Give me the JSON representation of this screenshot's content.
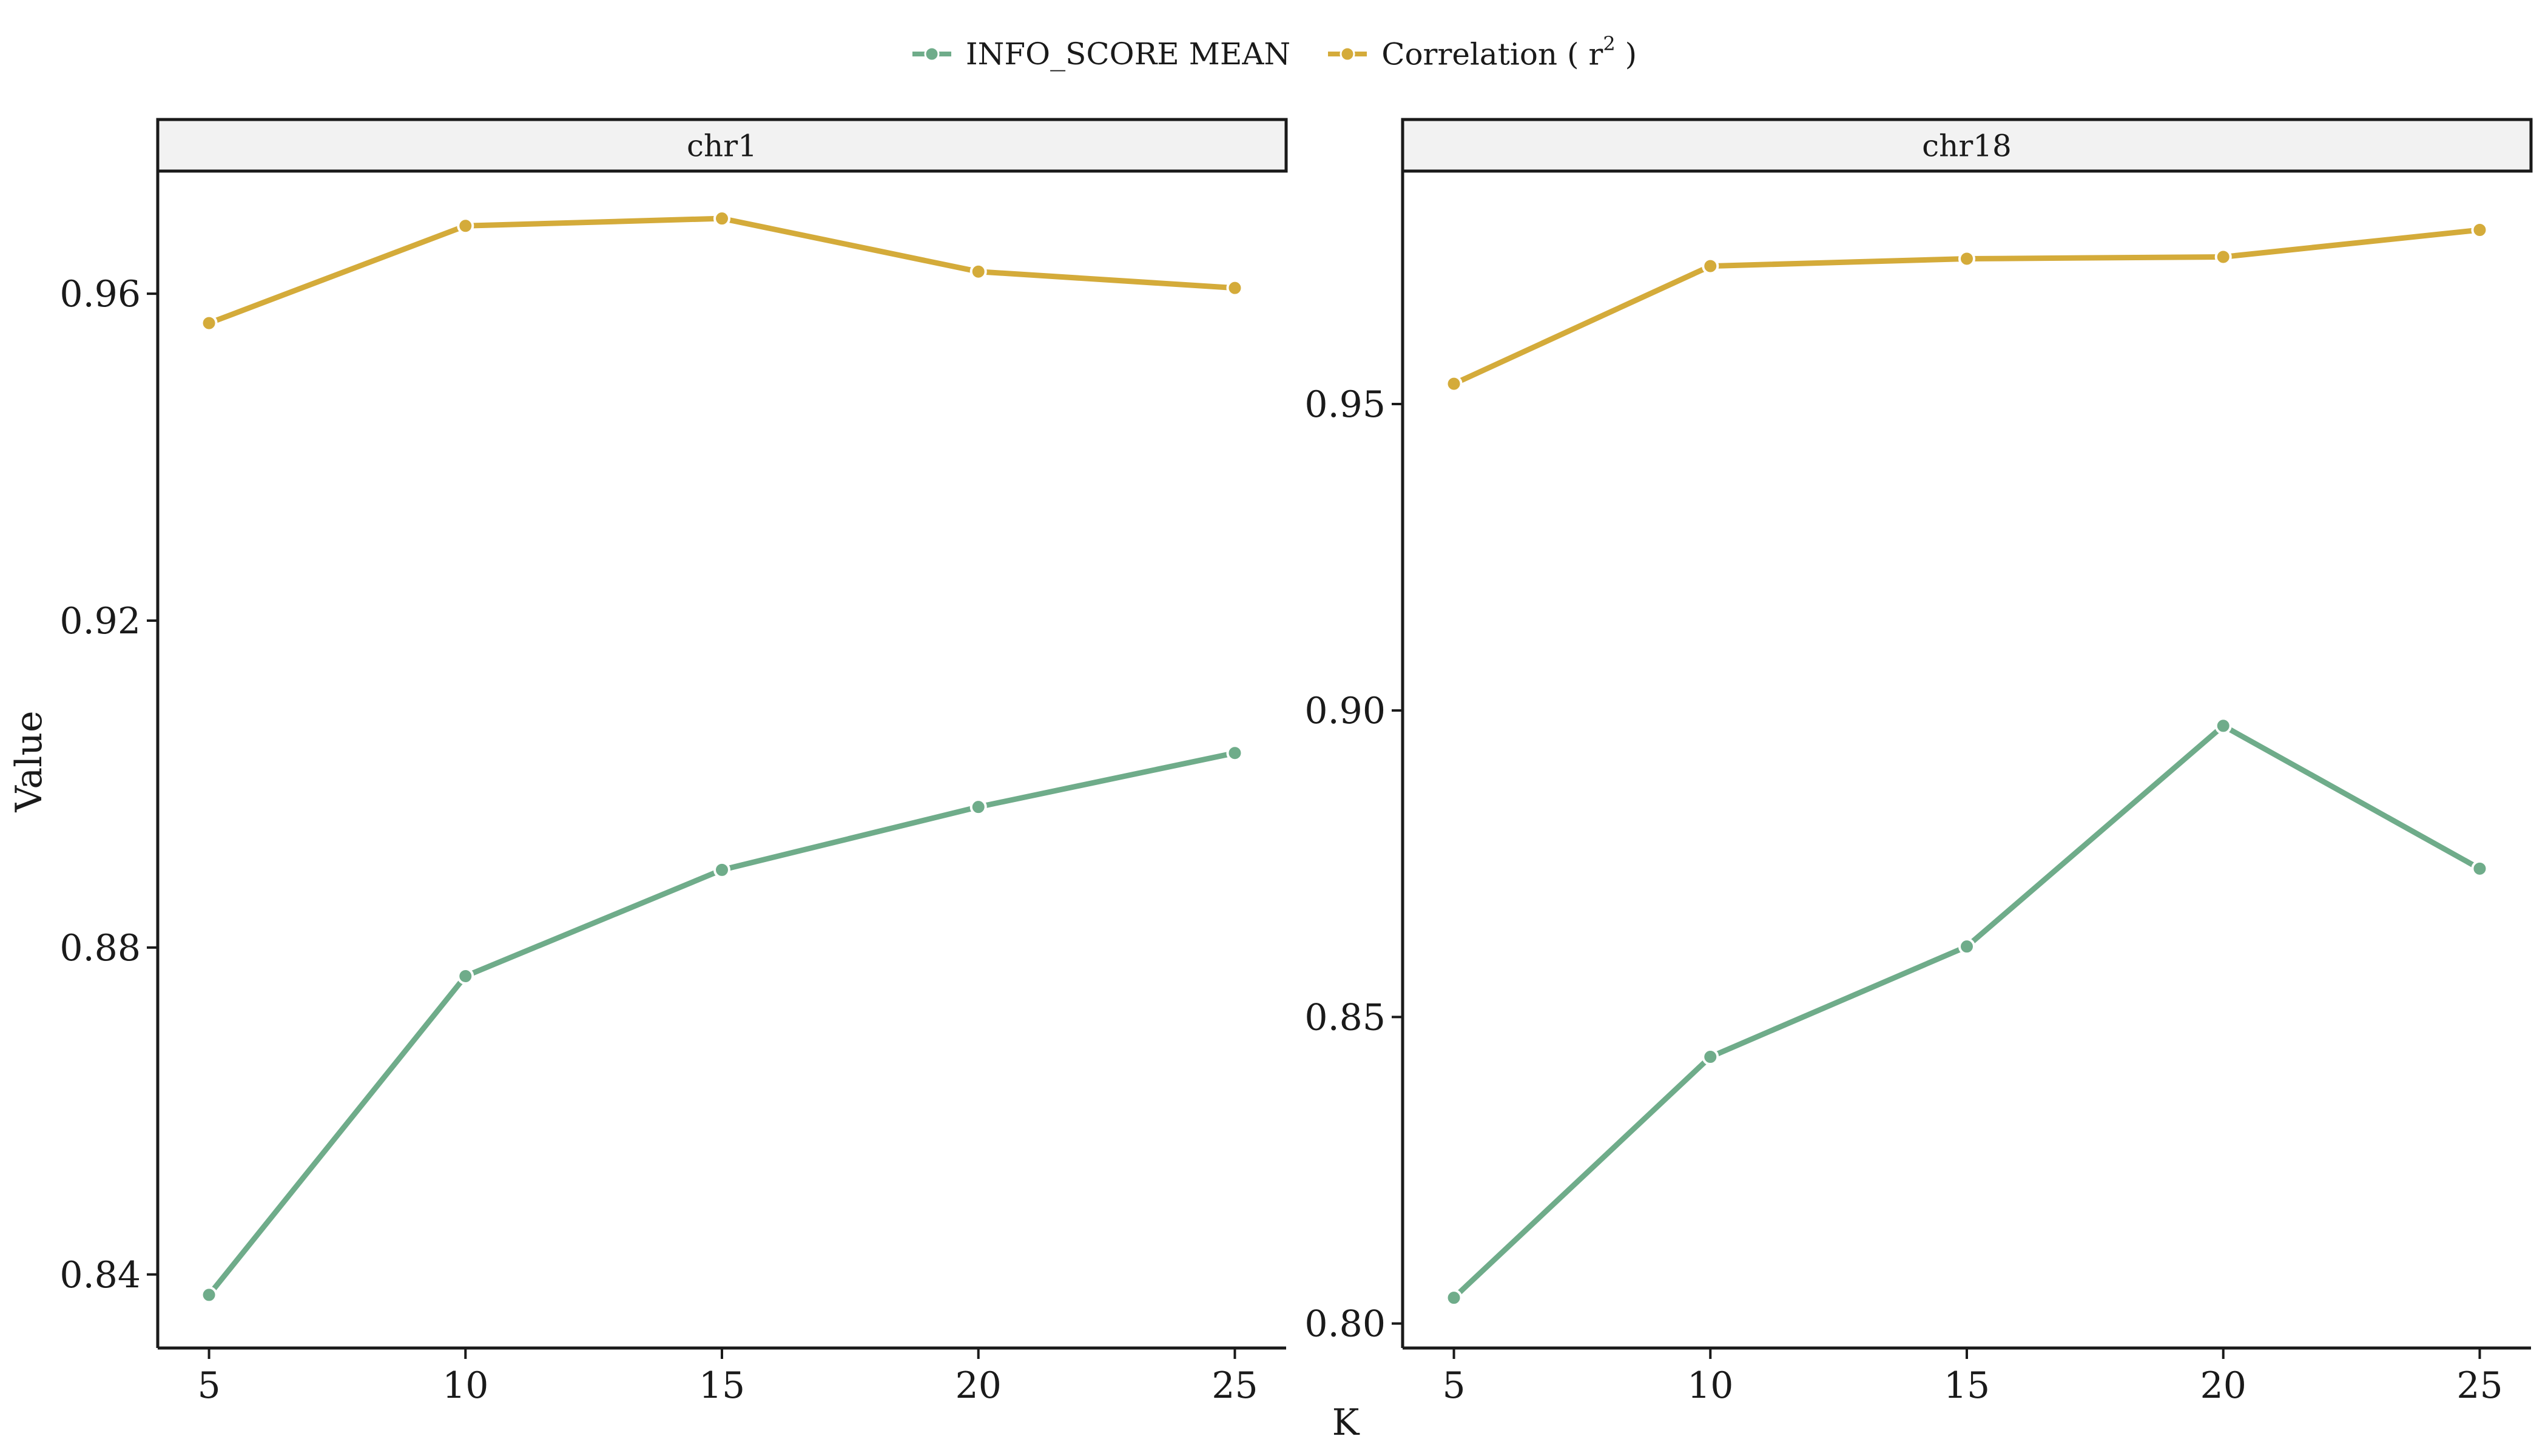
{
  "legend": {
    "items": [
      {
        "key": "info",
        "label": "INFO_SCORE MEAN",
        "color": "#6fac8a"
      },
      {
        "key": "corr",
        "label_prefix": "Correlation ( r",
        "label_sup": "2",
        "label_suffix": " )",
        "color": "#d4ab3a"
      }
    ]
  },
  "xlabel": "K",
  "ylabel": "Value",
  "chart_data": [
    {
      "type": "line",
      "panel": "chr1",
      "x": [
        5,
        10,
        15,
        20,
        25
      ],
      "xticks": [
        "5",
        "10",
        "15",
        "20",
        "25"
      ],
      "xlim": [
        4,
        26
      ],
      "ylim": [
        0.831,
        0.975
      ],
      "yticks": [
        0.84,
        0.88,
        0.92,
        0.96
      ],
      "yticklabels": [
        "0.84",
        "0.88",
        "0.92",
        "0.96"
      ],
      "series": [
        {
          "name": "INFO_SCORE MEAN",
          "color": "#6fac8a",
          "values": [
            0.8375,
            0.8765,
            0.8895,
            0.8972,
            0.9038
          ]
        },
        {
          "name": "Correlation ( r2 )",
          "color": "#d4ab3a",
          "values": [
            0.9564,
            0.9683,
            0.9692,
            0.9627,
            0.9607
          ]
        }
      ],
      "grid": false
    },
    {
      "type": "line",
      "panel": "chr18",
      "x": [
        5,
        10,
        15,
        20,
        25
      ],
      "xticks": [
        "5",
        "10",
        "15",
        "20",
        "25"
      ],
      "xlim": [
        4,
        26
      ],
      "ylim": [
        0.796,
        0.988
      ],
      "yticks": [
        0.8,
        0.85,
        0.9,
        0.95
      ],
      "yticklabels": [
        "0.80",
        "0.85",
        "0.90",
        "0.95"
      ],
      "series": [
        {
          "name": "INFO_SCORE MEAN",
          "color": "#6fac8a",
          "values": [
            0.8042,
            0.8435,
            0.8615,
            0.8975,
            0.8742
          ]
        },
        {
          "name": "Correlation ( r2 )",
          "color": "#d4ab3a",
          "values": [
            0.9533,
            0.9725,
            0.9737,
            0.974,
            0.9784
          ]
        }
      ],
      "grid": false
    }
  ]
}
